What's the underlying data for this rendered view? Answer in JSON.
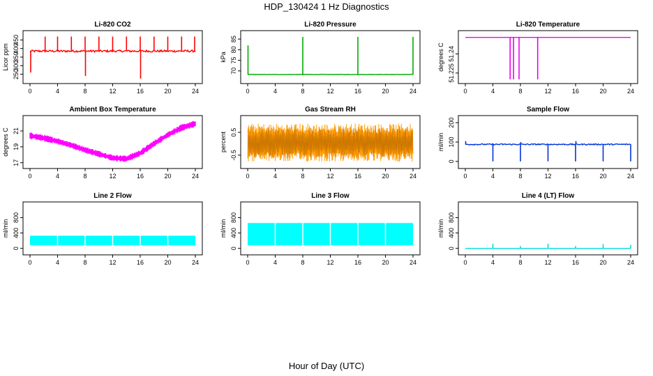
{
  "page": {
    "title": "HDP_130424  1 Hz Diagnostics",
    "xlabel": "Hour of Day (UTC)"
  },
  "chart_data": [
    {
      "type": "line",
      "title": "Li-820 CO2",
      "ylabel": "Licor ppm",
      "color": "#ff0000",
      "style": "spikes",
      "xlim": [
        0,
        24
      ],
      "ylim": [
        220,
        480
      ],
      "xticks": [
        0,
        4,
        8,
        12,
        16,
        20,
        24
      ],
      "yticks": [
        250,
        300,
        350,
        400,
        450
      ],
      "baseline": 385,
      "noise": 6,
      "events": [
        {
          "x": 0.1,
          "y": 260
        },
        {
          "x": 2.2,
          "y": 470
        },
        {
          "x": 4.0,
          "y": 470
        },
        {
          "x": 6.0,
          "y": 470
        },
        {
          "x": 8.0,
          "y": 470
        },
        {
          "x": 8.05,
          "y": 240
        },
        {
          "x": 10.0,
          "y": 470
        },
        {
          "x": 12.0,
          "y": 470
        },
        {
          "x": 14.0,
          "y": 470
        },
        {
          "x": 16.0,
          "y": 470
        },
        {
          "x": 16.05,
          "y": 225
        },
        {
          "x": 18.0,
          "y": 470
        },
        {
          "x": 20.0,
          "y": 470
        },
        {
          "x": 22.0,
          "y": 470
        },
        {
          "x": 23.9,
          "y": 470
        }
      ]
    },
    {
      "type": "line",
      "title": "Li-820 Pressure",
      "ylabel": "kPa",
      "color": "#00aa00",
      "style": "spikes",
      "xlim": [
        0,
        24
      ],
      "ylim": [
        66,
        87
      ],
      "xticks": [
        0,
        4,
        8,
        12,
        16,
        20,
        24
      ],
      "yticks": [
        70,
        75,
        80,
        85
      ],
      "baseline": 68.3,
      "noise": 0.1,
      "events": [
        {
          "x": 0.05,
          "y": 82
        },
        {
          "x": 8.0,
          "y": 86
        },
        {
          "x": 16.0,
          "y": 86
        },
        {
          "x": 24.0,
          "y": 86
        }
      ]
    },
    {
      "type": "line",
      "title": "Li-820 Temperature",
      "ylabel": "degrees C",
      "color": "#ee00ee",
      "style": "spikes",
      "xlim": [
        0,
        24
      ],
      "ylim": [
        51.22,
        51.255
      ],
      "xticks": [
        0,
        4,
        8,
        12,
        16,
        20,
        24
      ],
      "yticks": [
        51.225,
        51.24
      ],
      "baseline": 51.253,
      "noise": 0,
      "events": [
        {
          "x": 6.5,
          "y": 51.22
        },
        {
          "x": 7.0,
          "y": 51.22
        },
        {
          "x": 7.8,
          "y": 51.22
        },
        {
          "x": 10.5,
          "y": 51.22
        }
      ]
    },
    {
      "type": "line",
      "title": "Ambient Box Temperature",
      "ylabel": "degrees C",
      "color": "#ff00ff",
      "style": "band",
      "xlim": [
        0,
        24
      ],
      "ylim": [
        16.8,
        22.4
      ],
      "xticks": [
        0,
        4,
        8,
        12,
        16,
        20,
        24
      ],
      "yticks": [
        17,
        19,
        21
      ],
      "x": [
        0,
        2,
        4,
        6,
        8,
        10,
        12,
        14,
        16,
        18,
        20,
        22,
        24
      ],
      "y": [
        20.4,
        20.1,
        19.7,
        19.2,
        18.6,
        18.1,
        17.6,
        17.5,
        18.2,
        19.4,
        20.5,
        21.4,
        21.9
      ],
      "halfwidth": 0.35
    },
    {
      "type": "line",
      "title": "Gas Stream RH",
      "ylabel": "percent",
      "color": "#ff9900",
      "style": "noise",
      "xlim": [
        0,
        24
      ],
      "ylim": [
        -0.9,
        1.05
      ],
      "xticks": [
        0,
        4,
        8,
        12,
        16,
        20,
        24
      ],
      "yticks": [
        -0.5,
        0.5
      ],
      "yticklabels": [
        "-0.5",
        "0.5"
      ],
      "center": 0.05,
      "amplitude": 0.8
    },
    {
      "type": "line",
      "title": "Sample Flow",
      "ylabel": "ml/min",
      "color": "#0033dd",
      "style": "spikes",
      "xlim": [
        0,
        24
      ],
      "ylim": [
        -15,
        215
      ],
      "xticks": [
        0,
        4,
        8,
        12,
        16,
        20,
        24
      ],
      "yticks": [
        0,
        100,
        200
      ],
      "baseline": 88,
      "noise": 3,
      "events": [
        {
          "x": 0.05,
          "y": 105
        },
        {
          "x": 4.0,
          "y": 0
        },
        {
          "x": 8.0,
          "y": 0
        },
        {
          "x": 8.05,
          "y": 100
        },
        {
          "x": 12.0,
          "y": 0
        },
        {
          "x": 16.0,
          "y": 0
        },
        {
          "x": 16.05,
          "y": 105
        },
        {
          "x": 20.0,
          "y": 0
        },
        {
          "x": 24.0,
          "y": 0
        }
      ]
    },
    {
      "type": "area",
      "title": "Line 2 Flow",
      "ylabel": "ml/min",
      "color": "#00ffff",
      "style": "block",
      "xlim": [
        0,
        24
      ],
      "ylim": [
        -60,
        1100
      ],
      "xticks": [
        0,
        4,
        8,
        12,
        16,
        20,
        24
      ],
      "yticks": [
        0,
        400,
        800
      ],
      "lower": 80,
      "upper": 330,
      "x_end": 24.0,
      "gaps": [
        4,
        8,
        12,
        16,
        20
      ]
    },
    {
      "type": "area",
      "title": "Line 3 Flow",
      "ylabel": "ml/min",
      "color": "#00ffff",
      "style": "block",
      "xlim": [
        0,
        24
      ],
      "ylim": [
        -60,
        1100
      ],
      "xticks": [
        0,
        4,
        8,
        12,
        16,
        20,
        24
      ],
      "yticks": [
        0,
        400,
        800
      ],
      "lower": 80,
      "upper": 660,
      "x_end": 24.0,
      "gaps": [
        4,
        8,
        12,
        16,
        20
      ]
    },
    {
      "type": "line",
      "title": "Line 4 (LT) Flow",
      "ylabel": "ml/min",
      "color": "#00dddd",
      "style": "spikes",
      "xlim": [
        0,
        24
      ],
      "ylim": [
        -60,
        1100
      ],
      "xticks": [
        0,
        4,
        8,
        12,
        16,
        20,
        24
      ],
      "yticks": [
        0,
        400,
        800
      ],
      "baseline": 0,
      "noise": 0,
      "events": [
        {
          "x": 4.0,
          "y": 120
        },
        {
          "x": 8.0,
          "y": 60
        },
        {
          "x": 12.0,
          "y": 120
        },
        {
          "x": 16.0,
          "y": 60
        },
        {
          "x": 20.0,
          "y": 110
        },
        {
          "x": 24.0,
          "y": 90
        }
      ]
    }
  ]
}
